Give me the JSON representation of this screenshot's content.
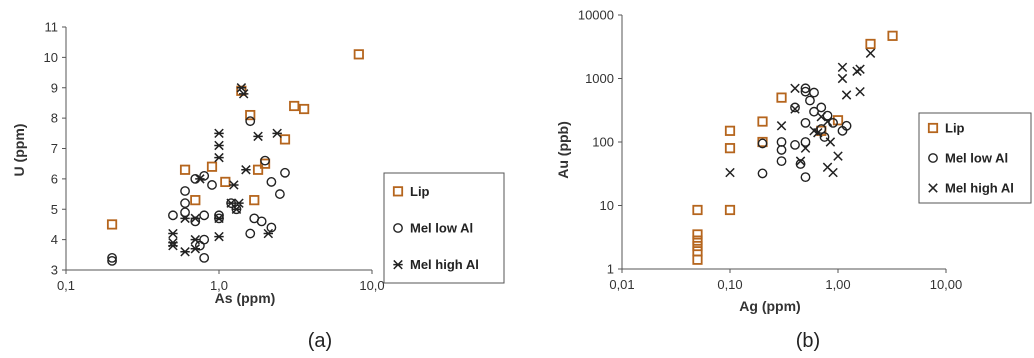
{
  "chart_data": [
    {
      "type": "scatter",
      "panel_label": "(a)",
      "xlabel": "As (ppm)",
      "ylabel": "U (ppm)",
      "x_scale": "log",
      "xlim": [
        0.1,
        10
      ],
      "ylim": [
        3,
        11
      ],
      "x_ticks": [
        "0,1",
        "1,0",
        "10,0"
      ],
      "y_ticks": [
        "3",
        "4",
        "5",
        "6",
        "7",
        "8",
        "9",
        "10",
        "11"
      ],
      "legend_position": "right",
      "series": [
        {
          "name": "Lip",
          "marker": "square",
          "color": "#b5651d",
          "points": [
            [
              0.2,
              4.5
            ],
            [
              0.6,
              6.3
            ],
            [
              0.7,
              5.3
            ],
            [
              0.9,
              6.4
            ],
            [
              1.1,
              5.9
            ],
            [
              1.4,
              8.9
            ],
            [
              1.6,
              8.1
            ],
            [
              1.8,
              6.3
            ],
            [
              2.0,
              6.5
            ],
            [
              1.7,
              5.3
            ],
            [
              2.7,
              7.3
            ],
            [
              3.1,
              8.4
            ],
            [
              3.6,
              8.3
            ],
            [
              8.2,
              10.1
            ]
          ]
        },
        {
          "name": "Mel low Al",
          "marker": "circle",
          "color": "#222222",
          "points": [
            [
              0.2,
              3.4
            ],
            [
              0.2,
              3.3
            ],
            [
              0.5,
              4.8
            ],
            [
              0.6,
              5.6
            ],
            [
              0.6,
              5.2
            ],
            [
              0.6,
              4.9
            ],
            [
              0.7,
              4.6
            ],
            [
              0.7,
              6.0
            ],
            [
              0.75,
              3.8
            ],
            [
              0.8,
              4.8
            ],
            [
              0.8,
              4.0
            ],
            [
              0.8,
              3.4
            ],
            [
              0.8,
              6.1
            ],
            [
              0.9,
              5.8
            ],
            [
              1.0,
              4.7
            ],
            [
              1.0,
              4.8
            ],
            [
              1.2,
              5.2
            ],
            [
              1.3,
              5.0
            ],
            [
              1.6,
              7.9
            ],
            [
              1.6,
              4.2
            ],
            [
              1.7,
              4.7
            ],
            [
              1.9,
              4.6
            ],
            [
              2.0,
              6.6
            ],
            [
              2.2,
              5.9
            ],
            [
              2.2,
              4.4
            ],
            [
              2.5,
              5.5
            ],
            [
              2.7,
              6.2
            ]
          ]
        },
        {
          "name": "Mel high Al",
          "marker": "asterisk",
          "color": "#222222",
          "points": [
            [
              0.5,
              4.2
            ],
            [
              0.5,
              3.9
            ],
            [
              0.5,
              3.8
            ],
            [
              0.6,
              4.7
            ],
            [
              0.6,
              3.6
            ],
            [
              0.7,
              4.0
            ],
            [
              0.7,
              3.7
            ],
            [
              0.7,
              4.7
            ],
            [
              0.75,
              6.0
            ],
            [
              1.0,
              7.5
            ],
            [
              1.0,
              7.1
            ],
            [
              1.0,
              6.7
            ],
            [
              1.0,
              4.1
            ],
            [
              1.0,
              4.7
            ],
            [
              1.2,
              5.2
            ],
            [
              1.25,
              5.8
            ],
            [
              1.3,
              5.0
            ],
            [
              1.35,
              5.2
            ],
            [
              1.4,
              9.0
            ],
            [
              1.45,
              8.8
            ],
            [
              1.5,
              6.3
            ],
            [
              1.8,
              7.4
            ],
            [
              2.1,
              4.2
            ],
            [
              2.4,
              7.5
            ]
          ]
        }
      ]
    },
    {
      "type": "scatter",
      "panel_label": "(b)",
      "xlabel": "Ag (ppm)",
      "ylabel": "Au (ppb)",
      "x_scale": "log",
      "y_scale": "log",
      "xlim": [
        0.01,
        10
      ],
      "ylim": [
        1,
        10000
      ],
      "x_ticks": [
        "0,01",
        "0,10",
        "1,00",
        "10,00"
      ],
      "y_ticks": [
        "1",
        "10",
        "100",
        "1000",
        "10000"
      ],
      "legend_position": "right",
      "series": [
        {
          "name": "Lip",
          "marker": "square",
          "color": "#b5651d",
          "points": [
            [
              0.05,
              8.5
            ],
            [
              0.05,
              3.5
            ],
            [
              0.05,
              2.8
            ],
            [
              0.05,
              2.3
            ],
            [
              0.05,
              1.9
            ],
            [
              0.05,
              1.4
            ],
            [
              0.1,
              150
            ],
            [
              0.1,
              80
            ],
            [
              0.1,
              8.5
            ],
            [
              0.2,
              210
            ],
            [
              0.2,
              100
            ],
            [
              0.3,
              500
            ],
            [
              0.7,
              150
            ],
            [
              1.0,
              220
            ],
            [
              2.0,
              3500
            ],
            [
              3.2,
              4700
            ]
          ]
        },
        {
          "name": "Mel low Al",
          "marker": "circle",
          "color": "#222222",
          "points": [
            [
              0.2,
              32
            ],
            [
              0.2,
              95
            ],
            [
              0.3,
              100
            ],
            [
              0.3,
              75
            ],
            [
              0.3,
              50
            ],
            [
              0.4,
              350
            ],
            [
              0.4,
              90
            ],
            [
              0.45,
              45
            ],
            [
              0.5,
              700
            ],
            [
              0.5,
              620
            ],
            [
              0.5,
              200
            ],
            [
              0.5,
              100
            ],
            [
              0.5,
              28
            ],
            [
              0.55,
              450
            ],
            [
              0.6,
              600
            ],
            [
              0.6,
              300
            ],
            [
              0.7,
              350
            ],
            [
              0.7,
              160
            ],
            [
              0.75,
              120
            ],
            [
              0.8,
              260
            ],
            [
              0.9,
              200
            ],
            [
              1.1,
              150
            ],
            [
              1.2,
              180
            ]
          ]
        },
        {
          "name": "Mel high Al",
          "marker": "cross",
          "color": "#222222",
          "points": [
            [
              0.1,
              33
            ],
            [
              0.3,
              180
            ],
            [
              0.4,
              700
            ],
            [
              0.4,
              330
            ],
            [
              0.45,
              50
            ],
            [
              0.5,
              80
            ],
            [
              0.6,
              150
            ],
            [
              0.65,
              140
            ],
            [
              0.7,
              250
            ],
            [
              0.8,
              210
            ],
            [
              0.8,
              40
            ],
            [
              0.85,
              100
            ],
            [
              0.9,
              33
            ],
            [
              1.0,
              60
            ],
            [
              1.1,
              1500
            ],
            [
              1.1,
              1000
            ],
            [
              1.2,
              550
            ],
            [
              1.6,
              1400
            ],
            [
              1.6,
              620
            ],
            [
              2.0,
              2500
            ],
            [
              1.5,
              1300
            ]
          ]
        }
      ]
    }
  ]
}
